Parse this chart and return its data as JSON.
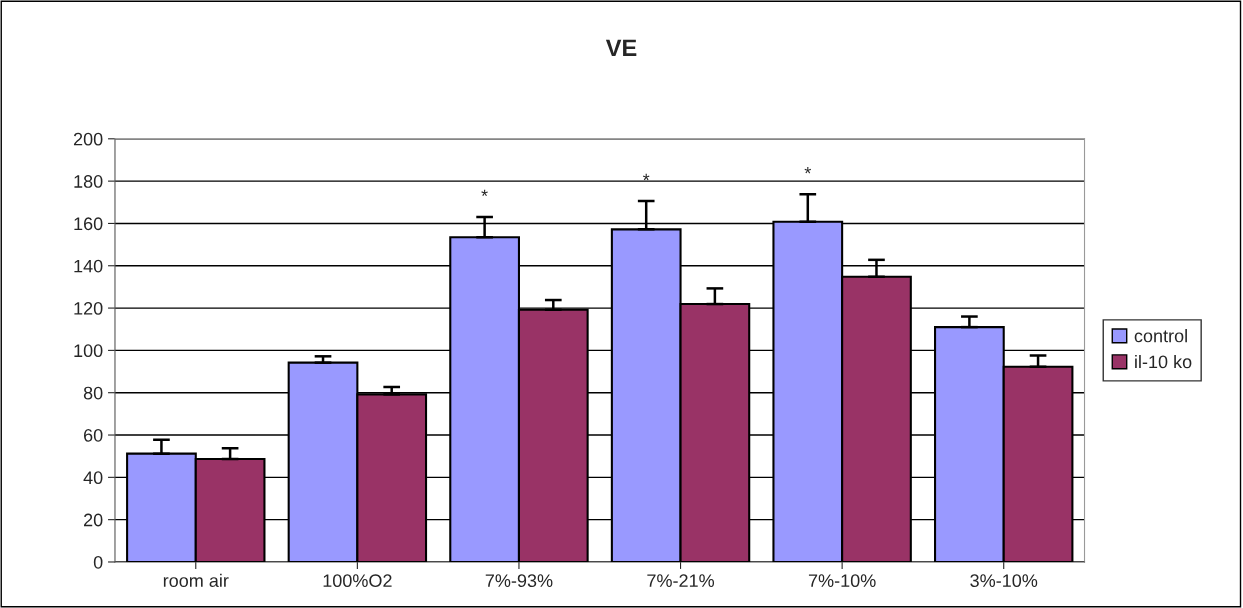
{
  "chart_data": {
    "type": "bar",
    "title": "VE",
    "categories": [
      "room air",
      "100%O2",
      "7%-93%",
      "7%-21%",
      "7%-10%",
      "3%-10%"
    ],
    "series": [
      {
        "name": "control",
        "color": "#9999ff",
        "values": [
          51.2,
          94.2,
          153.5,
          157.2,
          160.8,
          111.0
        ],
        "errors": [
          [
            51.2,
            57.8
          ],
          [
            94.2,
            97.2
          ],
          [
            153.5,
            163.1
          ],
          [
            157.2,
            170.6
          ],
          [
            160.8,
            173.8
          ],
          [
            111.0,
            116.0
          ]
        ]
      },
      {
        "name": "il-10 ko",
        "color": "#993366",
        "values": [
          48.7,
          79.2,
          119.2,
          121.9,
          134.8,
          92.3
        ],
        "errors": [
          [
            48.7,
            53.7
          ],
          [
            79.2,
            82.7
          ],
          [
            119.2,
            123.8
          ],
          [
            121.9,
            129.3
          ],
          [
            134.8,
            142.8
          ],
          [
            92.3,
            97.6
          ]
        ]
      }
    ],
    "annotations": [
      "*",
      "*",
      "*"
    ],
    "ylim": [
      0,
      200
    ],
    "yticks": [
      0,
      20,
      40,
      60,
      80,
      100,
      120,
      140,
      160,
      180,
      200
    ],
    "grid": "y",
    "legend": "right"
  }
}
